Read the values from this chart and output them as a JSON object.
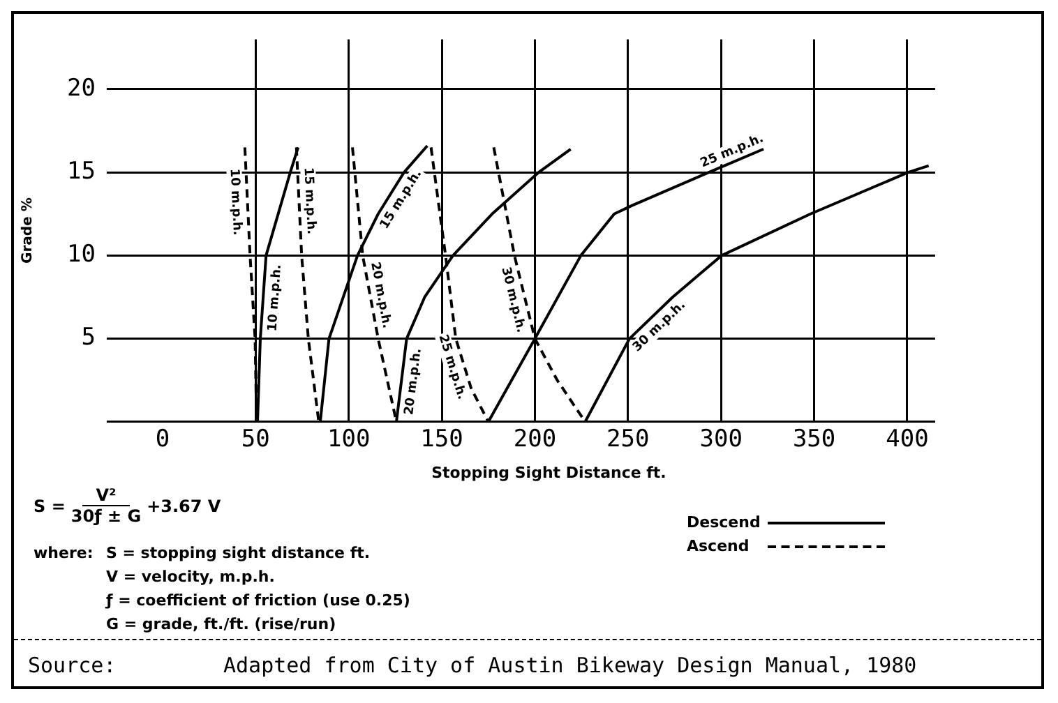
{
  "chart_data": {
    "type": "line",
    "xlabel": "Stopping Sight Distance ft.",
    "ylabel": "Grade %",
    "xlim": [
      0,
      415
    ],
    "ylim": [
      0,
      23
    ],
    "xticks": [
      0,
      50,
      100,
      150,
      200,
      250,
      300,
      350,
      400
    ],
    "yticks": [
      {
        "value": 0,
        "label": null
      },
      5,
      10,
      15,
      20
    ],
    "grid": true,
    "marker": "none",
    "legend": false,
    "series": [
      {
        "name": "10 m.p.h.",
        "color": "#000000",
        "line_style": "solid",
        "x": [
          51,
          52.5,
          55.6,
          68.6,
          72.8
        ],
        "values": [
          0,
          5,
          10,
          15,
          16.5
        ]
      },
      {
        "name": "10 m.p.h.",
        "color": "#000000",
        "line_style": "dashed",
        "x": [
          44.2,
          47,
          49.7,
          50.5
        ],
        "values": [
          16.5,
          10,
          5,
          0
        ]
      },
      {
        "name": "15 m.p.h.",
        "color": "#000000",
        "line_style": "solid",
        "x": [
          84.7,
          89.4,
          104.7,
          115.8,
          129.7,
          142.2
        ],
        "values": [
          0,
          5,
          10,
          12.5,
          15,
          16.6
        ]
      },
      {
        "name": "15 m.p.h.",
        "color": "#000000",
        "line_style": "dashed",
        "x": [
          71.9,
          74.7,
          78.3,
          83.9
        ],
        "values": [
          16.5,
          10,
          5,
          0
        ]
      },
      {
        "name": "20 m.p.h.",
        "color": "#000000",
        "line_style": "solid",
        "x": [
          125.6,
          131.1,
          140.8,
          156,
          177,
          202,
          219.2
        ],
        "values": [
          0,
          5,
          7.5,
          10,
          12.5,
          15,
          16.4
        ]
      },
      {
        "name": "20 m.p.h.",
        "color": "#000000",
        "line_style": "dashed",
        "x": [
          102,
          107.5,
          115.8,
          125.6
        ],
        "values": [
          16.5,
          10,
          5,
          0
        ]
      },
      {
        "name": "25 m.p.h.",
        "color": "#000000",
        "line_style": "solid",
        "x": [
          175,
          200,
          224.7,
          242.6,
          252,
          293.4,
          322.8
        ],
        "values": [
          0,
          5,
          10,
          12.5,
          13,
          15,
          16.4
        ]
      },
      {
        "name": "25 m.p.h.",
        "color": "#000000",
        "line_style": "dashed",
        "x": [
          144.2,
          152,
          157.5,
          165.8,
          175
        ],
        "values": [
          16.5,
          10,
          5,
          2,
          0
        ]
      },
      {
        "name": "30 m.p.h.",
        "color": "#000000",
        "line_style": "solid",
        "x": [
          227,
          250.8,
          274,
          300.3,
          348,
          400.5,
          411.5
        ],
        "values": [
          0,
          5,
          7.5,
          10,
          12.5,
          15,
          15.4
        ]
      },
      {
        "name": "30 m.p.h.",
        "color": "#000000",
        "line_style": "dashed",
        "x": [
          177.9,
          189,
          200,
          212,
          227
        ],
        "values": [
          16.5,
          10,
          5,
          2.5,
          0
        ]
      }
    ],
    "annotations": [
      "S =",
      "V²",
      "30ƒ ± G",
      "+3.67 V",
      "where:",
      "S = stopping sight distance ft.",
      "V = velocity, m.p.h.",
      "ƒ = coefficient of friction (use 0.25)",
      "G = grade, ft./ft. (rise/run)",
      "Descend",
      "Ascend",
      "Source:",
      "Adapted from City of Austin Bikeway Design Manual, 1980"
    ]
  }
}
